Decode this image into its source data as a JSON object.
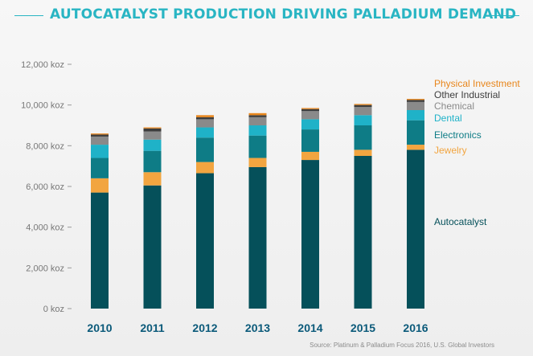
{
  "title": "AUTOCATALYST PRODUCTION DRIVING PALLADIUM DEMAND",
  "source": "Source: Platinum & Palladium Focus 2016, U.S. Global Investors",
  "colors": {
    "Autocatalyst": "#05505a",
    "Jewelry": "#f2a540",
    "Electronics": "#0e7c86",
    "Dental": "#1fb2c8",
    "Chemical": "#8a8a8a",
    "Other Industrial": "#3d3d3d",
    "Physical Investment": "#e8861c",
    "axis_text": "#777777",
    "category_text": "#0b5a7a"
  },
  "chart_data": {
    "type": "bar",
    "stacked": true,
    "title": "AUTOCATALYST PRODUCTION DRIVING PALLADIUM DEMAND",
    "xlabel": "",
    "ylabel": "",
    "ylim": [
      0,
      12000
    ],
    "yticks": [
      "0 koz",
      "2,000 koz",
      "4,000 koz",
      "6,000 koz",
      "8,000 koz",
      "10,000 koz",
      "12,000 koz"
    ],
    "categories": [
      "2010",
      "2011",
      "2012",
      "2013",
      "2014",
      "2015",
      "2016"
    ],
    "series": [
      {
        "name": "Autocatalyst",
        "values": [
          5700,
          6050,
          6650,
          6950,
          7300,
          7500,
          7800
        ]
      },
      {
        "name": "Jewelry",
        "values": [
          700,
          650,
          550,
          450,
          400,
          300,
          250
        ]
      },
      {
        "name": "Electronics",
        "values": [
          1000,
          1050,
          1200,
          1100,
          1100,
          1200,
          1200
        ]
      },
      {
        "name": "Dental",
        "values": [
          650,
          550,
          500,
          500,
          500,
          500,
          500
        ]
      },
      {
        "name": "Chemical",
        "values": [
          400,
          400,
          400,
          400,
          400,
          400,
          400
        ]
      },
      {
        "name": "Other Industrial",
        "values": [
          100,
          150,
          100,
          100,
          100,
          100,
          100
        ]
      },
      {
        "name": "Physical Investment",
        "values": [
          50,
          50,
          100,
          100,
          50,
          50,
          50
        ]
      }
    ],
    "legend_placement": "right, labels aligned with 2016 segments",
    "grid": false
  }
}
